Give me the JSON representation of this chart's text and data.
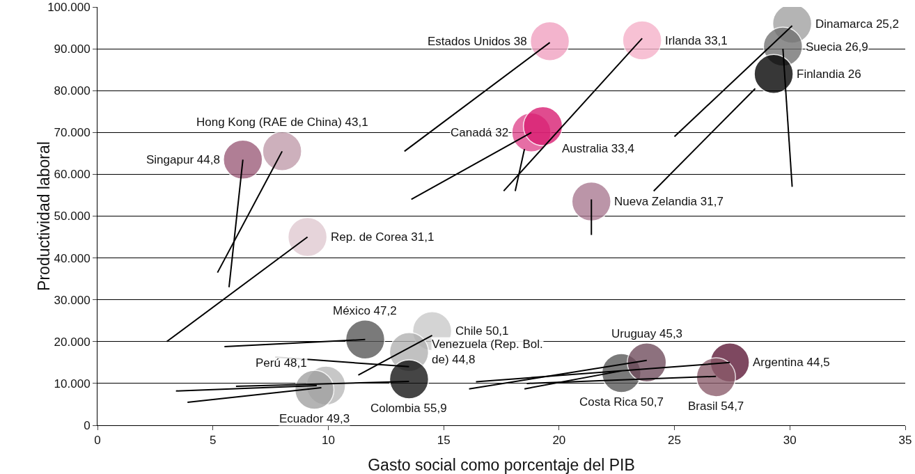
{
  "chart_data": {
    "type": "scatter",
    "xlabel": "Gasto social como porcentaje del PIB",
    "ylabel": "Productividad laboral",
    "xlim": [
      0,
      35
    ],
    "xticks": [
      0,
      5,
      10,
      15,
      20,
      25,
      30,
      35
    ],
    "ylim": [
      0,
      100000
    ],
    "yticks": [
      {
        "value": 0,
        "label": "0"
      },
      {
        "value": 10000,
        "label": "10.000"
      },
      {
        "value": 20000,
        "label": "20.000"
      },
      {
        "value": 30000,
        "label": "30.000"
      },
      {
        "value": 40000,
        "label": "40.000"
      },
      {
        "value": 50000,
        "label": "50.000"
      },
      {
        "value": 60000,
        "label": "60.000"
      },
      {
        "value": 70000,
        "label": "70.000"
      },
      {
        "value": 80000,
        "label": "80.000"
      },
      {
        "value": 90000,
        "label": "90.000"
      },
      {
        "value": 100000,
        "label": "100.000"
      }
    ],
    "grid": "y",
    "legend": false,
    "series": [
      {
        "x": [
          19.6,
          23.6,
          30.1,
          29.7,
          29.3,
          18.8,
          19.3,
          21.4,
          8.0,
          6.3,
          9.1,
          11.6,
          14.5,
          13.5,
          13.5,
          9.9,
          9.4,
          22.7,
          23.8,
          27.4,
          26.8
        ],
        "values": [
          91800,
          92000,
          96000,
          90500,
          84000,
          70000,
          71500,
          53500,
          65500,
          63500,
          45000,
          20500,
          22500,
          17500,
          11000,
          9500,
          8500,
          12500,
          15000,
          15000,
          11500
        ],
        "colors": [
          "#f0a0c0",
          "#f5b0c8",
          "#a0a0a0",
          "#707070",
          "#000000",
          "#e0468c",
          "#d81b70",
          "#a87890",
          "#c09aaa",
          "#9a5a78",
          "#e0c8d0",
          "#555555",
          "#c8c8c8",
          "#b0b0b0",
          "#111111",
          "#b8b8b8",
          "#a0a0a0",
          "#555555",
          "#6e4a5a",
          "#5a1634",
          "#8a5a6a"
        ]
      },
      {
        "type": "line",
        "x": [
          13.3,
          19.6
        ],
        "values": [
          65500,
          91500
        ],
        "color": "#000000"
      },
      {
        "type": "line",
        "x": [
          17.6,
          23.6
        ],
        "values": [
          56000,
          92500
        ],
        "color": "#000000"
      },
      {
        "type": "line",
        "x": [
          25.0,
          30.1
        ],
        "values": [
          69000,
          95500
        ],
        "color": "#000000"
      },
      {
        "type": "line",
        "x": [
          30.1,
          29.7
        ],
        "values": [
          57000,
          90000
        ],
        "color": "#000000"
      },
      {
        "type": "line",
        "x": [
          24.1,
          28.5
        ],
        "values": [
          56000,
          80500
        ],
        "color": "#000000"
      },
      {
        "type": "line",
        "x": [
          13.6,
          18.8
        ],
        "values": [
          54000,
          70000
        ],
        "color": "#000000"
      },
      {
        "type": "line",
        "x": [
          18.1,
          18.5
        ],
        "values": [
          56000,
          66000
        ],
        "color": "#000000"
      },
      {
        "type": "line",
        "x": [
          21.4,
          21.4
        ],
        "values": [
          45500,
          54000
        ],
        "color": "#000000"
      },
      {
        "type": "line",
        "x": [
          5.2,
          8.0
        ],
        "values": [
          36500,
          65500
        ],
        "color": "#000000"
      },
      {
        "type": "line",
        "x": [
          5.7,
          6.3
        ],
        "values": [
          33000,
          63500
        ],
        "color": "#000000"
      },
      {
        "type": "line",
        "x": [
          3.0,
          9.1
        ],
        "values": [
          20000,
          45000
        ],
        "color": "#000000"
      },
      {
        "type": "line",
        "x": [
          5.5,
          11.6
        ],
        "values": [
          18800,
          20500
        ],
        "color": "#000000"
      },
      {
        "type": "line",
        "x": [
          11.3,
          14.5
        ],
        "values": [
          12000,
          21500
        ],
        "color": "#000000"
      },
      {
        "type": "line",
        "x": [
          7.7,
          13.5
        ],
        "values": [
          16300,
          14000
        ],
        "color": "#000000"
      },
      {
        "type": "line",
        "x": [
          6.0,
          13.5
        ],
        "values": [
          9300,
          10500
        ],
        "color": "#000000"
      },
      {
        "type": "line",
        "x": [
          3.4,
          9.5
        ],
        "values": [
          8200,
          9500
        ],
        "color": "#000000"
      },
      {
        "type": "line",
        "x": [
          3.9,
          9.7
        ],
        "values": [
          5500,
          9000
        ],
        "color": "#000000"
      },
      {
        "type": "line",
        "x": [
          18.5,
          22.7
        ],
        "values": [
          8700,
          13000
        ],
        "color": "#000000"
      },
      {
        "type": "line",
        "x": [
          16.1,
          23.8
        ],
        "values": [
          8700,
          15500
        ],
        "color": "#000000"
      },
      {
        "type": "line",
        "x": [
          16.4,
          27.4
        ],
        "values": [
          10400,
          15000
        ],
        "color": "#000000"
      },
      {
        "type": "line",
        "x": [
          18.6,
          26.8
        ],
        "values": [
          10000,
          11700
        ],
        "color": "#000000"
      }
    ],
    "annotations": [
      {
        "text": "Estados Unidos 38",
        "x": 19.6,
        "y": 91800
      },
      {
        "text": "Irlanda 33,1",
        "x": 23.6,
        "y": 92000
      },
      {
        "text": "Dinamarca 25,2",
        "x": 30.1,
        "y": 96000
      },
      {
        "text": "Suecia 26,9",
        "x": 29.7,
        "y": 90500
      },
      {
        "text": "Finlandia 26",
        "x": 29.3,
        "y": 84000
      },
      {
        "text": "Australia 33,4",
        "x": 19.3,
        "y": 71500
      },
      {
        "text": "Canadá 32",
        "x": 18.8,
        "y": 70000
      },
      {
        "text": "Hong Kong (RAE de China) 43,1",
        "x": 8.0,
        "y": 65500
      },
      {
        "text": "Singapur 44,8",
        "x": 6.3,
        "y": 63500
      },
      {
        "text": "Nueva Zelandia 31,7",
        "x": 21.4,
        "y": 53500
      },
      {
        "text": "Rep. de Corea 31,1",
        "x": 9.1,
        "y": 45000
      },
      {
        "text": "México 47,2",
        "x": 11.6,
        "y": 20500
      },
      {
        "text": "Chile 50,1",
        "x": 14.5,
        "y": 22500
      },
      {
        "text": "Venezuela (Rep. Bol.\nde) 44,8",
        "x": 13.5,
        "y": 17500
      },
      {
        "text": "Colombia 55,9",
        "x": 13.5,
        "y": 11000
      },
      {
        "text": "Perú 48,1",
        "x": 9.9,
        "y": 9500
      },
      {
        "text": "Ecuador 49,3",
        "x": 9.4,
        "y": 8500
      },
      {
        "text": "Costa Rica 50,7",
        "x": 22.7,
        "y": 12500
      },
      {
        "text": "Uruguay 45,3",
        "x": 23.8,
        "y": 15000
      },
      {
        "text": "Argentina 44,5",
        "x": 27.4,
        "y": 15000
      },
      {
        "text": "Brasil 54,7",
        "x": 26.8,
        "y": 11500
      }
    ]
  }
}
